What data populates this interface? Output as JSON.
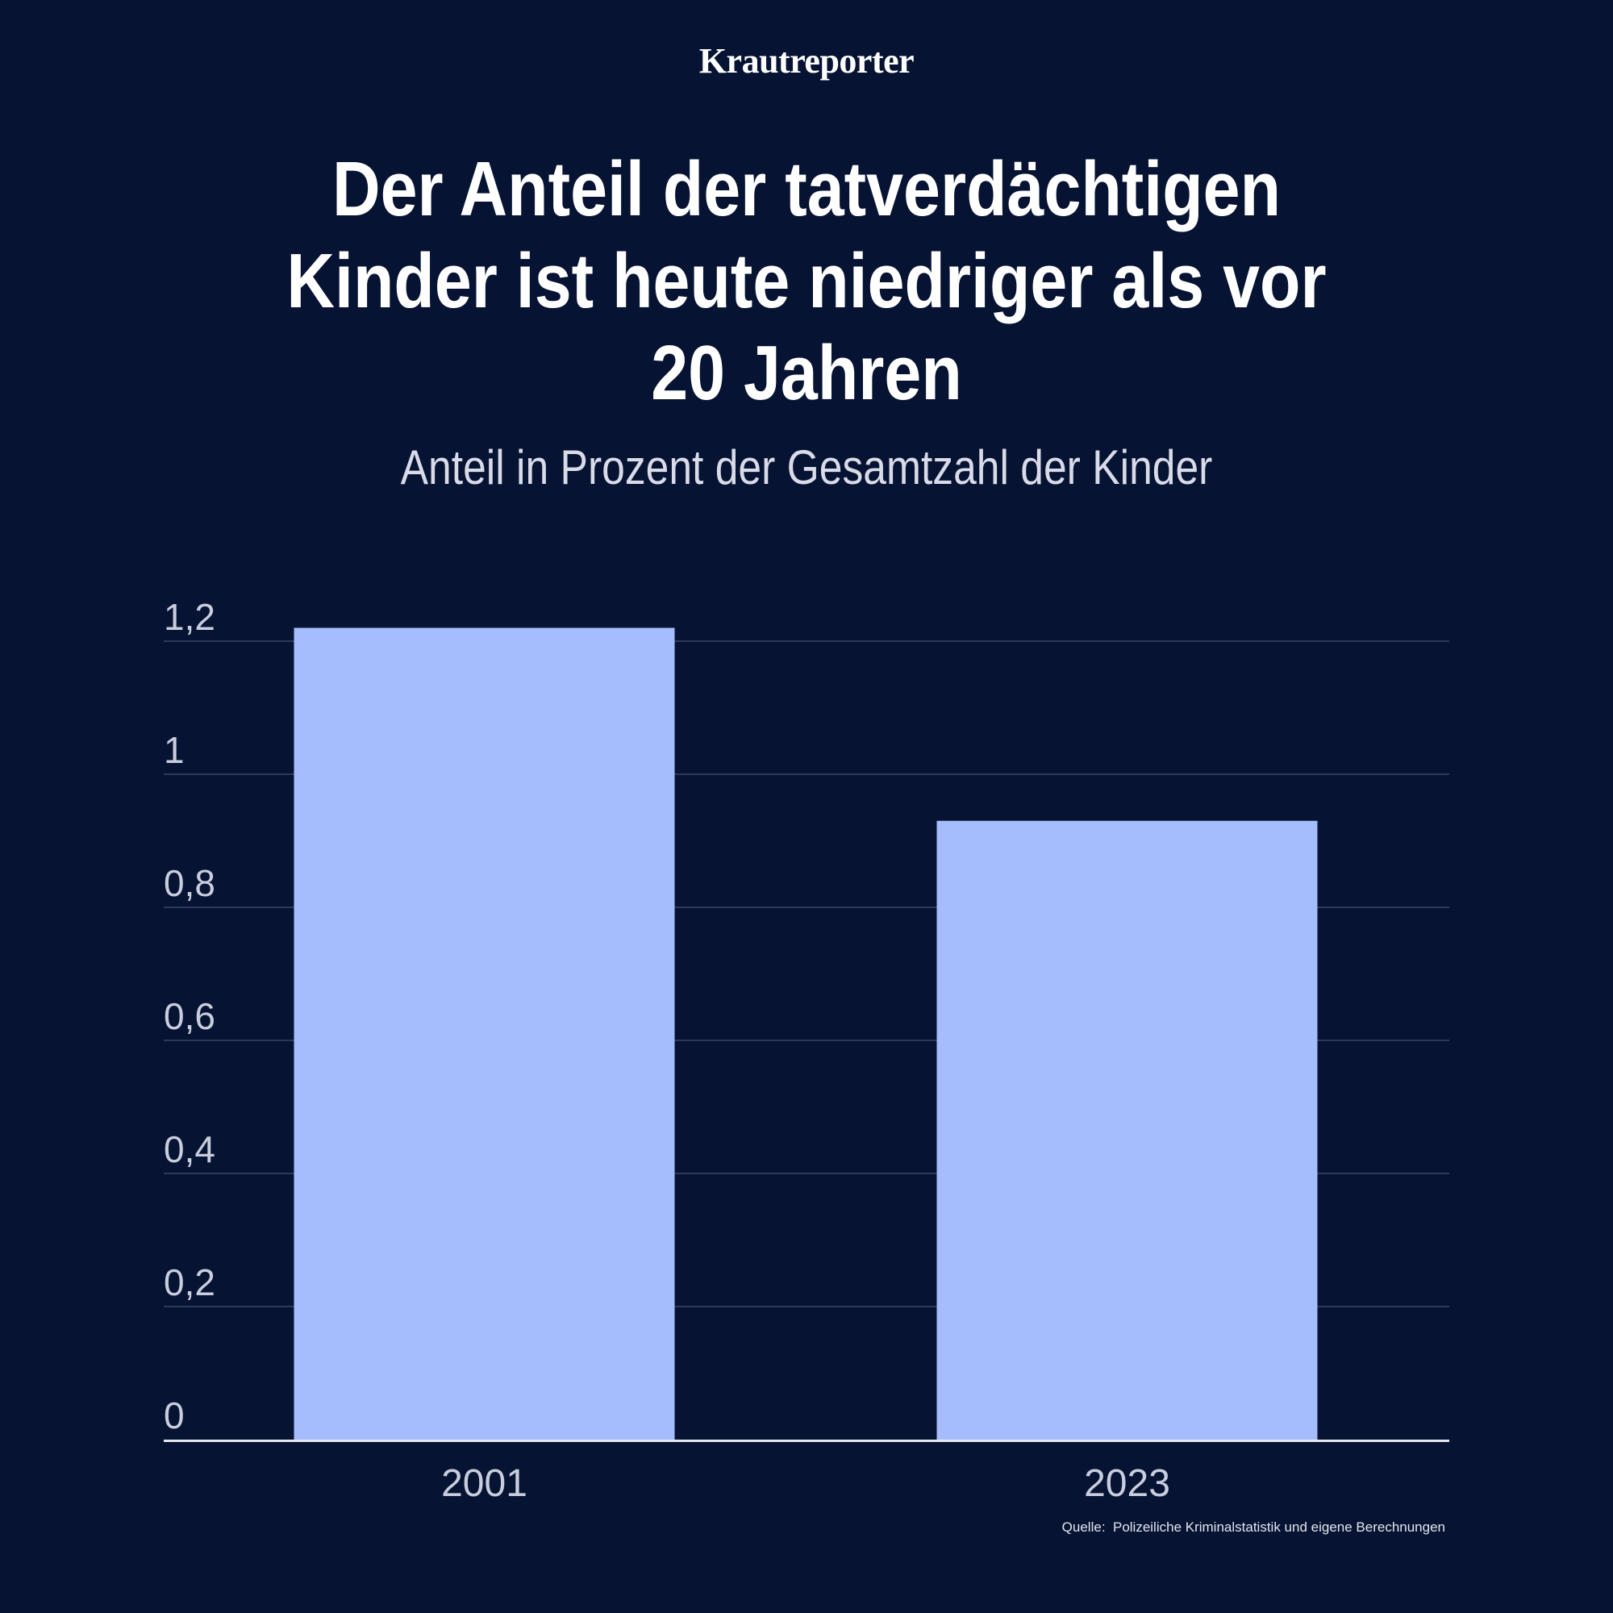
{
  "brand": "Krautreporter",
  "chart_data": {
    "type": "bar",
    "title": "Der Anteil der tatverdächtigen Kinder ist heute niedriger als vor 20 Jahren",
    "subtitle": "Anteil in Prozent der Gesamtzahl der Kinder",
    "categories": [
      "2001",
      "2023"
    ],
    "values": [
      1.22,
      0.93
    ],
    "ylim": [
      0,
      1.2
    ],
    "yticks": [
      0,
      0.2,
      0.4,
      0.6,
      0.8,
      1,
      1.2
    ],
    "ytick_labels": [
      "0",
      "0,2",
      "0,4",
      "0,6",
      "0,8",
      "1",
      "1,2"
    ],
    "xlabel": "",
    "ylabel": "",
    "grid": true,
    "bar_color": "#a6bdfd"
  },
  "source": "Quelle:  Polizeiliche Kriminalstatistik und eigene Berechnungen",
  "colors": {
    "background": "#061333",
    "bar": "#a6bdfd",
    "grid": "#3a4663",
    "axis": "#e6e8f0",
    "text": "#ffffff"
  }
}
